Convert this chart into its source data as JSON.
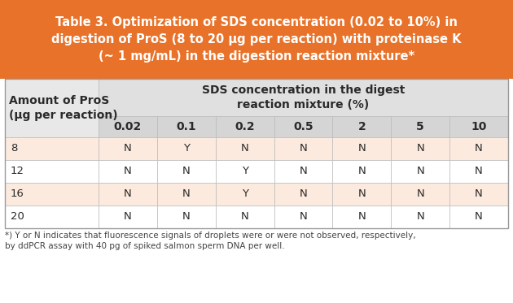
{
  "title": "Table 3. Optimization of SDS concentration (0.02 to 10%) in\ndigestion of ProS (8 to 20 μg per reaction) with proteinase K\n(~ 1 mg/mL) in the digestion reaction mixture*",
  "title_bg": "#E8722A",
  "title_color": "#FFFFFF",
  "subheader": "SDS concentration in the digest\nreaction mixture (%)",
  "col1_header_line1": "Amount of ProS",
  "col1_header_line2": "(μg per reaction)",
  "sds_cols": [
    "0.02",
    "0.1",
    "0.2",
    "0.5",
    "2",
    "5",
    "10"
  ],
  "row_labels": [
    "8",
    "12",
    "16",
    "20"
  ],
  "table_data": [
    [
      "N",
      "Y",
      "N",
      "N",
      "N",
      "N",
      "N"
    ],
    [
      "N",
      "N",
      "Y",
      "N",
      "N",
      "N",
      "N"
    ],
    [
      "N",
      "N",
      "Y",
      "N",
      "N",
      "N",
      "N"
    ],
    [
      "N",
      "N",
      "N",
      "N",
      "N",
      "N",
      "N"
    ]
  ],
  "footnote_line1": "*) Y or N indicates that fluorescence signals of droplets were or were not observed, respectively,",
  "footnote_line2": "by ddPCR assay with 40 pg of spiked salmon sperm DNA per well.",
  "row_colors": [
    "#FDEADE",
    "#FFFFFF",
    "#FDEADE",
    "#FFFFFF"
  ],
  "col1_header_bg": "#E8E8E8",
  "subheader_bg": "#E0E0E0",
  "colname_row_bg": "#D5D5D5",
  "border_color": "#BBBBBB",
  "text_color": "#2A2A2A",
  "title_fontsize": 10.5,
  "cell_fontsize": 9.5,
  "header_fontsize": 10,
  "colname_fontsize": 10,
  "footnote_fontsize": 7.5
}
